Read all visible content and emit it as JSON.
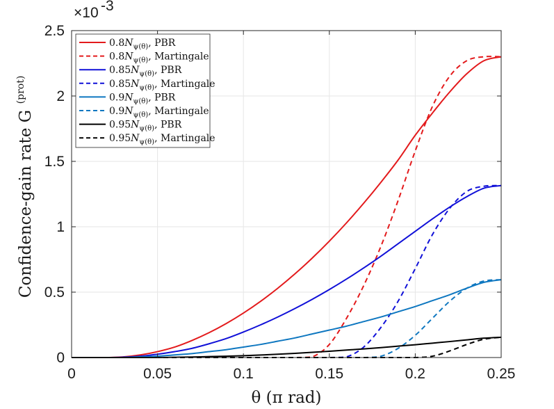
{
  "chart_data": {
    "type": "line",
    "title": "",
    "xlabel": "θ (π rad)",
    "ylabel": "Confidence-gain rate G",
    "ylabel_superscript": "(prot)",
    "y_scale_factor": "×10",
    "y_scale_exponent": "-3",
    "xlim": [
      0,
      0.25
    ],
    "ylim": [
      0,
      2.5
    ],
    "xticks": [
      0,
      0.05,
      0.1,
      0.15,
      0.2,
      0.25
    ],
    "xtick_labels": [
      "0",
      "0.05",
      "0.1",
      "0.15",
      "0.2",
      "0.25"
    ],
    "yticks": [
      0,
      0.5,
      1,
      1.5,
      2,
      2.5
    ],
    "ytick_labels": [
      "0",
      "0.5",
      "1",
      "1.5",
      "2",
      "2.5"
    ],
    "grid": true,
    "legend_position": "top-left",
    "x": [
      0,
      0.01,
      0.02,
      0.03,
      0.04,
      0.05,
      0.06,
      0.07,
      0.08,
      0.09,
      0.1,
      0.11,
      0.12,
      0.13,
      0.14,
      0.15,
      0.16,
      0.17,
      0.18,
      0.19,
      0.2,
      0.21,
      0.22,
      0.23,
      0.24,
      0.25
    ],
    "series": [
      {
        "name": "PBR",
        "prefix": "0.8",
        "color": "#e31a1c",
        "dash": false,
        "values": [
          0,
          0,
          0,
          0.005,
          0.02,
          0.045,
          0.08,
          0.13,
          0.19,
          0.26,
          0.34,
          0.43,
          0.53,
          0.64,
          0.76,
          0.89,
          1.03,
          1.18,
          1.34,
          1.51,
          1.7,
          1.87,
          2.03,
          2.17,
          2.27,
          2.3
        ]
      },
      {
        "name": "Martingale",
        "prefix": "0.8",
        "color": "#e31a1c",
        "dash": true,
        "values": [
          0,
          0,
          0,
          0,
          0,
          0,
          0,
          0,
          0,
          0,
          0,
          0,
          0,
          0,
          0.005,
          0.1,
          0.3,
          0.55,
          0.85,
          1.2,
          1.58,
          1.92,
          2.15,
          2.27,
          2.3,
          2.3
        ]
      },
      {
        "name": "PBR",
        "prefix": "0.85",
        "color": "#1010d8",
        "dash": false,
        "values": [
          0,
          0,
          0,
          0.003,
          0.01,
          0.025,
          0.045,
          0.07,
          0.105,
          0.145,
          0.195,
          0.25,
          0.31,
          0.375,
          0.445,
          0.52,
          0.6,
          0.685,
          0.775,
          0.87,
          0.965,
          1.06,
          1.15,
          1.23,
          1.295,
          1.315
        ]
      },
      {
        "name": "Martingale",
        "prefix": "0.85",
        "color": "#1010d8",
        "dash": true,
        "values": [
          0,
          0,
          0,
          0,
          0,
          0,
          0,
          0,
          0,
          0,
          0,
          0,
          0,
          0,
          0,
          0,
          0.005,
          0.08,
          0.23,
          0.43,
          0.68,
          0.94,
          1.14,
          1.27,
          1.31,
          1.315
        ]
      },
      {
        "name": "PBR",
        "prefix": "0.9",
        "color": "#0e77c0",
        "dash": false,
        "values": [
          0,
          0,
          0,
          0,
          0.005,
          0.01,
          0.02,
          0.03,
          0.045,
          0.06,
          0.08,
          0.1,
          0.125,
          0.15,
          0.18,
          0.21,
          0.24,
          0.275,
          0.31,
          0.35,
          0.39,
          0.435,
          0.48,
          0.53,
          0.575,
          0.595
        ]
      },
      {
        "name": "Martingale",
        "prefix": "0.9",
        "color": "#0e77c0",
        "dash": true,
        "values": [
          0,
          0,
          0,
          0,
          0,
          0,
          0,
          0,
          0,
          0,
          0,
          0,
          0,
          0,
          0,
          0,
          0,
          0,
          0.01,
          0.07,
          0.17,
          0.3,
          0.43,
          0.53,
          0.585,
          0.595
        ]
      },
      {
        "name": "PBR",
        "prefix": "0.95",
        "color": "#000000",
        "dash": false,
        "values": [
          0,
          0,
          0,
          0,
          0,
          0,
          0.002,
          0.004,
          0.007,
          0.01,
          0.014,
          0.019,
          0.025,
          0.032,
          0.04,
          0.048,
          0.057,
          0.066,
          0.076,
          0.087,
          0.098,
          0.11,
          0.122,
          0.135,
          0.148,
          0.155
        ]
      },
      {
        "name": "Martingale",
        "prefix": "0.95",
        "color": "#000000",
        "dash": true,
        "values": [
          0,
          0,
          0,
          0,
          0,
          0,
          0,
          0,
          0,
          0,
          0,
          0,
          0,
          0,
          0,
          0,
          0,
          0,
          0,
          0,
          0,
          0.01,
          0.05,
          0.1,
          0.14,
          0.155
        ]
      }
    ],
    "legend_entries": [
      {
        "prefix": "0.8",
        "symbol": "N",
        "subscript": "ψ(θ)",
        "suffix": ", PBR"
      },
      {
        "prefix": "0.8",
        "symbol": "N",
        "subscript": "ψ(θ)",
        "suffix": ", Martingale"
      },
      {
        "prefix": "0.85",
        "symbol": "N",
        "subscript": "ψ(θ)",
        "suffix": ", PBR"
      },
      {
        "prefix": "0.85",
        "symbol": "N",
        "subscript": "ψ(θ)",
        "suffix": ", Martingale"
      },
      {
        "prefix": "0.9",
        "symbol": "N",
        "subscript": "ψ(θ)",
        "suffix": ", PBR"
      },
      {
        "prefix": "0.9",
        "symbol": "N",
        "subscript": "ψ(θ)",
        "suffix": ", Martingale"
      },
      {
        "prefix": "0.95",
        "symbol": "N",
        "subscript": "ψ(θ)",
        "suffix": ", PBR"
      },
      {
        "prefix": "0.95",
        "symbol": "N",
        "subscript": "ψ(θ)",
        "suffix": ", Martingale"
      }
    ]
  }
}
